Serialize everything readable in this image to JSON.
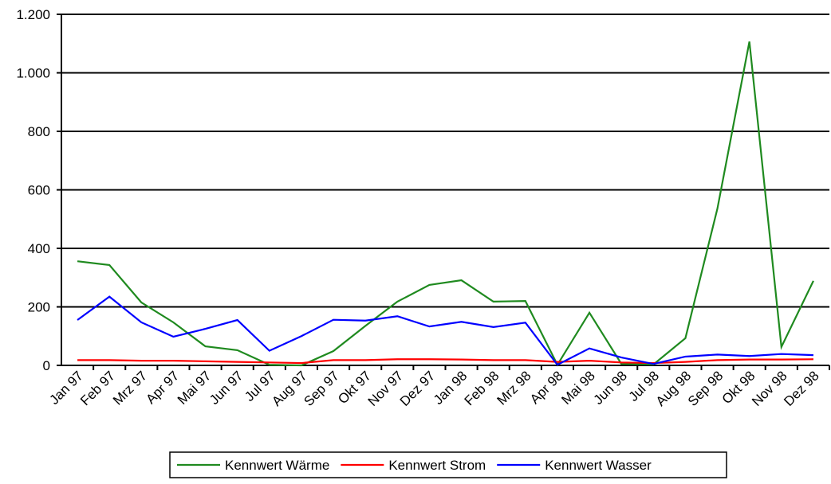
{
  "chart_data": {
    "type": "line",
    "categories": [
      "Jan 97",
      "Feb 97",
      "Mrz 97",
      "Apr 97",
      "Mai 97",
      "Jun 97",
      "Jul 97",
      "Aug 97",
      "Sep 97",
      "Okt 97",
      "Nov 97",
      "Dez 97",
      "Jan 98",
      "Feb 98",
      "Mrz 98",
      "Apr 98",
      "Mai 98",
      "Jun 98",
      "Jul 98",
      "Aug 98",
      "Sep 98",
      "Okt 98",
      "Nov 98",
      "Dez 98"
    ],
    "series": [
      {
        "name": "Kennwert Wärme",
        "color": "#1f8a1f",
        "values": [
          356,
          343,
          215,
          147,
          65,
          52,
          2,
          0,
          49,
          135,
          218,
          275,
          291,
          218,
          220,
          2,
          180,
          5,
          3,
          93,
          536,
          1107,
          63,
          289
        ]
      },
      {
        "name": "Kennwert Strom",
        "color": "#ff0000",
        "values": [
          18,
          18,
          16,
          16,
          14,
          12,
          10,
          8,
          18,
          18,
          21,
          21,
          20,
          18,
          18,
          12,
          16,
          10,
          8,
          12,
          18,
          20,
          20,
          21
        ]
      },
      {
        "name": "Kennwert Wasser",
        "color": "#0000ff",
        "values": [
          155,
          235,
          147,
          98,
          125,
          155,
          50,
          100,
          156,
          153,
          168,
          133,
          149,
          131,
          146,
          2,
          58,
          27,
          5,
          30,
          37,
          32,
          39,
          35
        ]
      }
    ],
    "ylim": [
      0,
      1200
    ],
    "yticks": [
      0,
      200,
      400,
      600,
      800,
      {
        "value": 1000,
        "label": "1.000"
      },
      {
        "value": 1200,
        "label": "1.200"
      }
    ],
    "grid": true,
    "legend": "bottom"
  }
}
